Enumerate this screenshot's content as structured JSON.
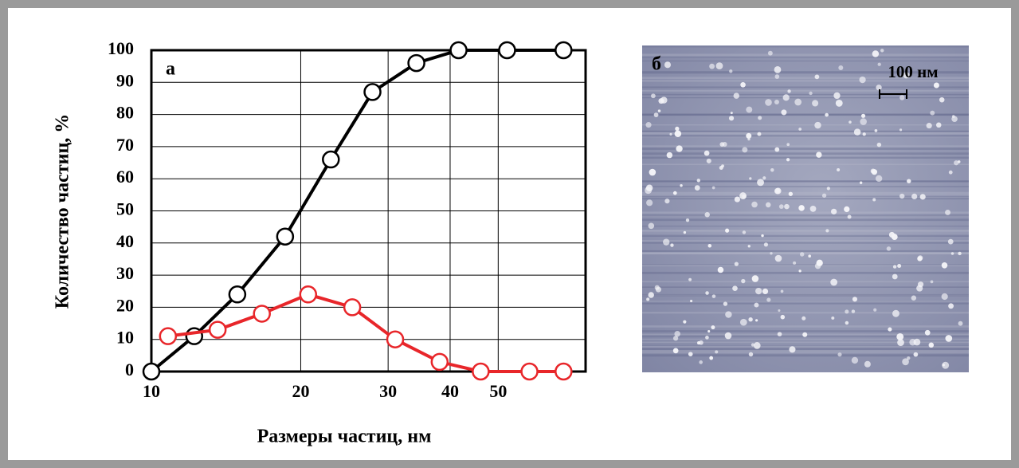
{
  "chart_data": {
    "type": "line",
    "xlabel": "Размеры частиц, нм",
    "ylabel": "Количество частиц, %",
    "panel_label": "а",
    "xscale": "log",
    "xlim": [
      10,
      75
    ],
    "xticks": [
      10,
      20,
      30,
      40,
      50
    ],
    "ylim": [
      0,
      100
    ],
    "yticks": [
      0,
      10,
      20,
      30,
      40,
      50,
      60,
      70,
      80,
      90,
      100
    ],
    "grid": true,
    "series": [
      {
        "color": "#000000",
        "x": [
          10,
          12.2,
          14.9,
          18.6,
          23.0,
          27.9,
          34.2,
          41.6,
          52.1,
          67.7
        ],
        "values": [
          0,
          11,
          24,
          42,
          66,
          87,
          96,
          100,
          100,
          100
        ]
      },
      {
        "color": "#e8262a",
        "x": [
          10.8,
          13.6,
          16.7,
          20.7,
          25.4,
          31.0,
          38.1,
          46.1,
          57.8,
          67.7
        ],
        "values": [
          11,
          13,
          18,
          24,
          20,
          10,
          3,
          0,
          0,
          0
        ]
      }
    ]
  },
  "image": {
    "panel_label": "б",
    "scale_bar": "100 нм"
  }
}
